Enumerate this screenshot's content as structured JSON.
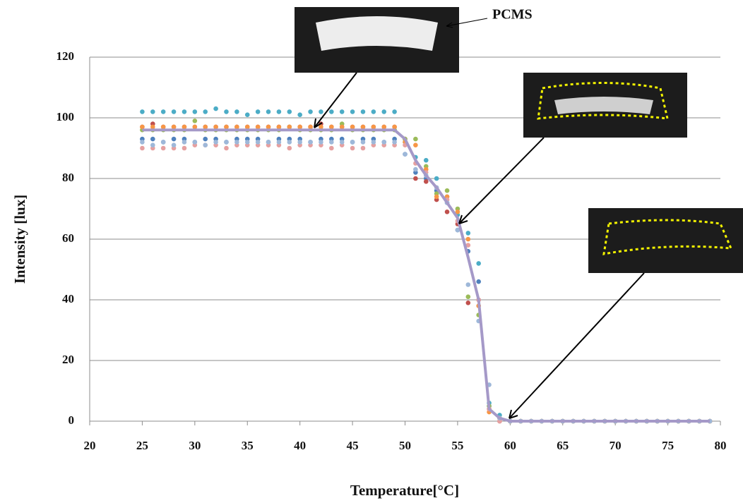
{
  "chart_data": {
    "type": "scatter",
    "x_label": "Temperature[°C]",
    "y_label": "Intensity [lux]",
    "annotation": "PCMS",
    "x": [
      25,
      26,
      27,
      28,
      29,
      30,
      31,
      32,
      33,
      34,
      35,
      36,
      37,
      38,
      39,
      40,
      41,
      42,
      43,
      44,
      45,
      46,
      47,
      48,
      49,
      50,
      51,
      52,
      53,
      54,
      55,
      56,
      57,
      58,
      59,
      60,
      61,
      62,
      63,
      64,
      65,
      66,
      67,
      68,
      69,
      70,
      71,
      72,
      73,
      74,
      75,
      76,
      77,
      78,
      79
    ],
    "xlim": [
      20,
      80
    ],
    "ylim": [
      0,
      120
    ],
    "xticks": [
      20,
      25,
      30,
      35,
      40,
      45,
      50,
      55,
      60,
      65,
      70,
      75,
      80
    ],
    "yticks": [
      0,
      20,
      40,
      60,
      80,
      100,
      120
    ],
    "grid": true,
    "series": [
      {
        "color": "#4bacc6",
        "values": [
          102,
          102,
          102,
          102,
          102,
          102,
          102,
          103,
          102,
          102,
          101,
          102,
          102,
          102,
          102,
          101,
          102,
          102,
          102,
          102,
          102,
          102,
          102,
          102,
          102,
          92,
          87,
          86,
          80,
          74,
          68,
          62,
          52,
          6,
          2,
          0,
          0,
          0,
          0,
          0,
          0,
          0,
          0,
          0,
          0,
          0,
          0,
          0,
          0,
          0,
          0,
          0,
          0,
          0,
          0
        ]
      },
      {
        "color": "#4f81bd",
        "values": [
          93,
          93,
          92,
          93,
          93,
          92,
          93,
          93,
          92,
          93,
          93,
          93,
          92,
          93,
          93,
          93,
          92,
          93,
          93,
          93,
          92,
          93,
          93,
          92,
          93,
          88,
          82,
          80,
          76,
          72,
          63,
          56,
          46,
          5,
          1,
          0,
          0,
          0,
          0,
          0,
          0,
          0,
          0,
          0,
          0,
          0,
          0,
          0,
          0,
          0,
          0,
          0,
          0,
          0,
          0
        ]
      },
      {
        "color": "#c0504d",
        "values": [
          97,
          98,
          97,
          97,
          97,
          97,
          97,
          97,
          97,
          97,
          97,
          97,
          97,
          97,
          97,
          97,
          97,
          98,
          97,
          97,
          97,
          97,
          97,
          97,
          97,
          93,
          80,
          79,
          73,
          69,
          65,
          39,
          40,
          4,
          0,
          0,
          0,
          0,
          0,
          0,
          0,
          0,
          0,
          0,
          0,
          0,
          0,
          0,
          0,
          0,
          0,
          0,
          0,
          0,
          0
        ]
      },
      {
        "color": "#9bbb59",
        "values": [
          96,
          96,
          96,
          96,
          96,
          99,
          96,
          96,
          96,
          96,
          96,
          96,
          96,
          96,
          97,
          96,
          96,
          96,
          96,
          98,
          96,
          96,
          96,
          96,
          96,
          93,
          93,
          84,
          75,
          76,
          70,
          41,
          35,
          5,
          1,
          0,
          0,
          0,
          0,
          0,
          0,
          0,
          0,
          0,
          0,
          0,
          0,
          0,
          0,
          0,
          0,
          0,
          0,
          0,
          0
        ]
      },
      {
        "color": "#f79646",
        "values": [
          97,
          97,
          97,
          97,
          97,
          97,
          97,
          97,
          97,
          97,
          97,
          97,
          97,
          97,
          97,
          97,
          97,
          97,
          97,
          97,
          97,
          97,
          97,
          97,
          97,
          92,
          91,
          83,
          74,
          74,
          69,
          60,
          38,
          3,
          1,
          0,
          0,
          0,
          0,
          0,
          0,
          0,
          0,
          0,
          0,
          0,
          0,
          0,
          0,
          0,
          0,
          0,
          0,
          0,
          0
        ]
      },
      {
        "color": "#e6a0a0",
        "values": [
          90,
          90,
          90,
          90,
          90,
          91,
          91,
          91,
          90,
          91,
          91,
          91,
          91,
          91,
          90,
          91,
          91,
          91,
          90,
          91,
          90,
          90,
          91,
          91,
          91,
          91,
          85,
          82,
          77,
          73,
          66,
          58,
          40,
          4,
          0,
          0,
          0,
          0,
          0,
          0,
          0,
          0,
          0,
          0,
          0,
          0,
          0,
          0,
          0,
          0,
          0,
          0,
          0,
          0,
          0
        ]
      },
      {
        "color": "#9eb8d9",
        "values": [
          92,
          91,
          92,
          91,
          92,
          92,
          91,
          92,
          92,
          92,
          92,
          92,
          92,
          92,
          92,
          92,
          92,
          92,
          92,
          92,
          92,
          92,
          92,
          92,
          92,
          88,
          83,
          81,
          77,
          72,
          63,
          45,
          33,
          12,
          1,
          0,
          0,
          0,
          0,
          0,
          0,
          0,
          0,
          0,
          0,
          0,
          0,
          0,
          0,
          0,
          0,
          0,
          0,
          0,
          0
        ]
      },
      {
        "type": "line",
        "color": "#a599c8",
        "values": [
          96,
          96,
          96,
          96,
          96,
          96,
          96,
          96,
          96,
          96,
          96,
          96,
          96,
          96,
          96,
          96,
          96,
          96,
          96,
          96,
          96,
          96,
          96,
          96,
          96,
          93,
          86,
          81,
          77,
          72,
          67,
          54,
          40,
          4,
          1,
          0,
          0,
          0,
          0,
          0,
          0,
          0,
          0,
          0,
          0,
          0,
          0,
          0,
          0,
          0,
          0,
          0,
          0,
          0,
          0
        ]
      }
    ]
  }
}
